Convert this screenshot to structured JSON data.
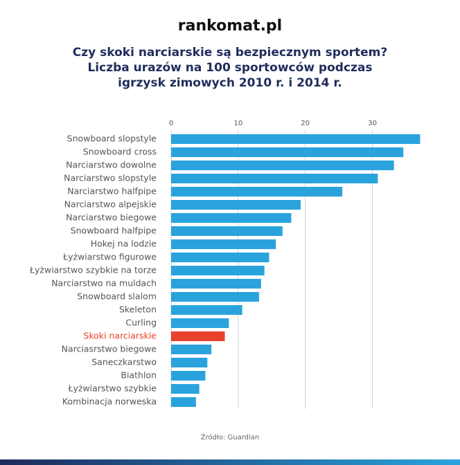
{
  "logo": "rankomat.pl",
  "chart_data": {
    "type": "barh",
    "title": [
      "Czy skoki narciarskie są bezpiecznym sportem?",
      "Liczba urazów na 100 sportowców podczas",
      "igrzysk zimowych 2010 r. i 2014 r."
    ],
    "source": "Źródło: Guardian",
    "categories": [
      "Snowboard slopstyle",
      "Snowboard cross",
      "Narciarstwo dowolne",
      "Narciarstwo slopstyle",
      "Narciarstwo halfpipe",
      "Narciarstwo alpejskie",
      "Narciarstwo biegowe",
      "Snowboard halfpipe",
      "Hokej na lodzie",
      "Łyżwiarstwo figurowe",
      "Łyżwiarstwo szybkie na torze",
      "Narciarstwo na muldach",
      "Snowboard slalom",
      "Skeleton",
      "Curling",
      "Skoki narciarskie",
      "Narciasrstwo biegowe",
      "Saneczkarstwo",
      "Biathlon",
      "Łyżwiarstwo szybkie",
      "Kombinacja norweska"
    ],
    "values": [
      37.1,
      34.6,
      33.2,
      30.8,
      25.5,
      19.3,
      17.9,
      16.6,
      15.6,
      14.6,
      13.9,
      13.4,
      13.1,
      10.6,
      8.6,
      8.0,
      6.0,
      5.4,
      5.1,
      4.2,
      3.7
    ],
    "color": "#2aa3dd",
    "colors": [
      "#2aa3dd",
      "#2aa3dd",
      "#2aa3dd",
      "#2aa3dd",
      "#2aa3dd",
      "#2aa3dd",
      "#2aa3dd",
      "#2aa3dd",
      "#2aa3dd",
      "#2aa3dd",
      "#2aa3dd",
      "#2aa3dd",
      "#2aa3dd",
      "#2aa3dd",
      "#2aa3dd",
      "#e8412c",
      "#2aa3dd",
      "#2aa3dd",
      "#2aa3dd",
      "#2aa3dd",
      "#2aa3dd"
    ],
    "xlim": [
      0,
      38.5
    ],
    "xticks": [
      0,
      10,
      20,
      30
    ],
    "grid": true
  }
}
